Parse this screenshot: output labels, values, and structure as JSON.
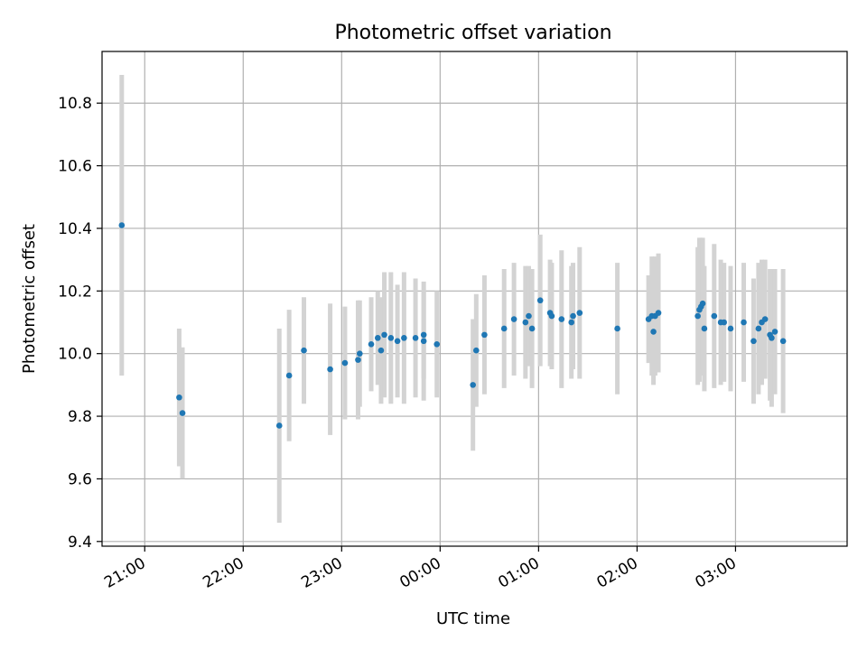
{
  "chart_data": {
    "type": "scatter",
    "title": "Photometric offset variation",
    "xlabel": "UTC time",
    "ylabel": "Photometric offset",
    "x_ticks": [
      "21:00",
      "22:00",
      "23:00",
      "00:00",
      "01:00",
      "02:00",
      "03:00"
    ],
    "y_ticks": [
      "9.4",
      "9.6",
      "9.8",
      "10.0",
      "10.2",
      "10.4",
      "10.6",
      "10.8"
    ],
    "y_tick_values": [
      9.4,
      9.6,
      9.8,
      10.0,
      10.2,
      10.4,
      10.6,
      10.8
    ],
    "ylim": [
      9.385,
      10.965
    ],
    "xlim": [
      "20:34",
      "04:08"
    ],
    "grid": true,
    "marker_color": "#1f77b4",
    "errorbar_color": "#d3d3d3",
    "series": [
      {
        "x": [
          "20:46",
          "21:21",
          "21:23",
          "22:22",
          "22:28",
          "22:37",
          "22:53",
          "23:02",
          "23:10",
          "23:11",
          "23:18",
          "23:22",
          "23:24",
          "23:26",
          "23:30",
          "23:34",
          "23:38",
          "23:45",
          "23:50",
          "23:50",
          "23:58",
          "00:20",
          "00:22",
          "00:27",
          "00:39",
          "00:45",
          "00:52",
          "00:54",
          "00:56",
          "01:01",
          "01:07",
          "01:08",
          "01:14",
          "01:20",
          "01:21",
          "01:25",
          "01:48",
          "02:07",
          "02:09",
          "02:10",
          "02:11",
          "02:13",
          "02:37",
          "02:38",
          "02:39",
          "02:40",
          "02:41",
          "02:47",
          "02:51",
          "02:53",
          "02:57",
          "03:05",
          "03:11",
          "03:14",
          "03:16",
          "03:18",
          "03:21",
          "03:22",
          "03:24",
          "03:29"
        ],
        "y": [
          10.41,
          9.86,
          9.81,
          9.77,
          9.93,
          10.01,
          9.95,
          9.97,
          9.98,
          10.0,
          10.03,
          10.05,
          10.01,
          10.06,
          10.05,
          10.04,
          10.05,
          10.05,
          10.04,
          10.06,
          10.03,
          9.9,
          10.01,
          10.06,
          10.08,
          10.11,
          10.1,
          10.12,
          10.08,
          10.17,
          10.13,
          10.12,
          10.11,
          10.1,
          10.12,
          10.13,
          10.08,
          10.11,
          10.12,
          10.07,
          10.12,
          10.13,
          10.12,
          10.14,
          10.15,
          10.16,
          10.08,
          10.12,
          10.1,
          10.1,
          10.08,
          10.1,
          10.04,
          10.08,
          10.1,
          10.11,
          10.06,
          10.05,
          10.07,
          10.04
        ],
        "err": [
          0.48,
          0.22,
          0.21,
          0.31,
          0.21,
          0.17,
          0.21,
          0.18,
          0.19,
          0.17,
          0.15,
          0.15,
          0.17,
          0.2,
          0.21,
          0.18,
          0.21,
          0.19,
          0.19,
          0.14,
          0.17,
          0.21,
          0.18,
          0.19,
          0.19,
          0.18,
          0.18,
          0.16,
          0.19,
          0.21,
          0.17,
          0.17,
          0.22,
          0.18,
          0.17,
          0.21,
          0.21,
          0.14,
          0.19,
          0.17,
          0.19,
          0.19,
          0.22,
          0.23,
          0.22,
          0.21,
          0.2,
          0.23,
          0.2,
          0.19,
          0.2,
          0.19,
          0.2,
          0.21,
          0.2,
          0.19,
          0.21,
          0.22,
          0.2,
          0.23
        ]
      }
    ]
  }
}
